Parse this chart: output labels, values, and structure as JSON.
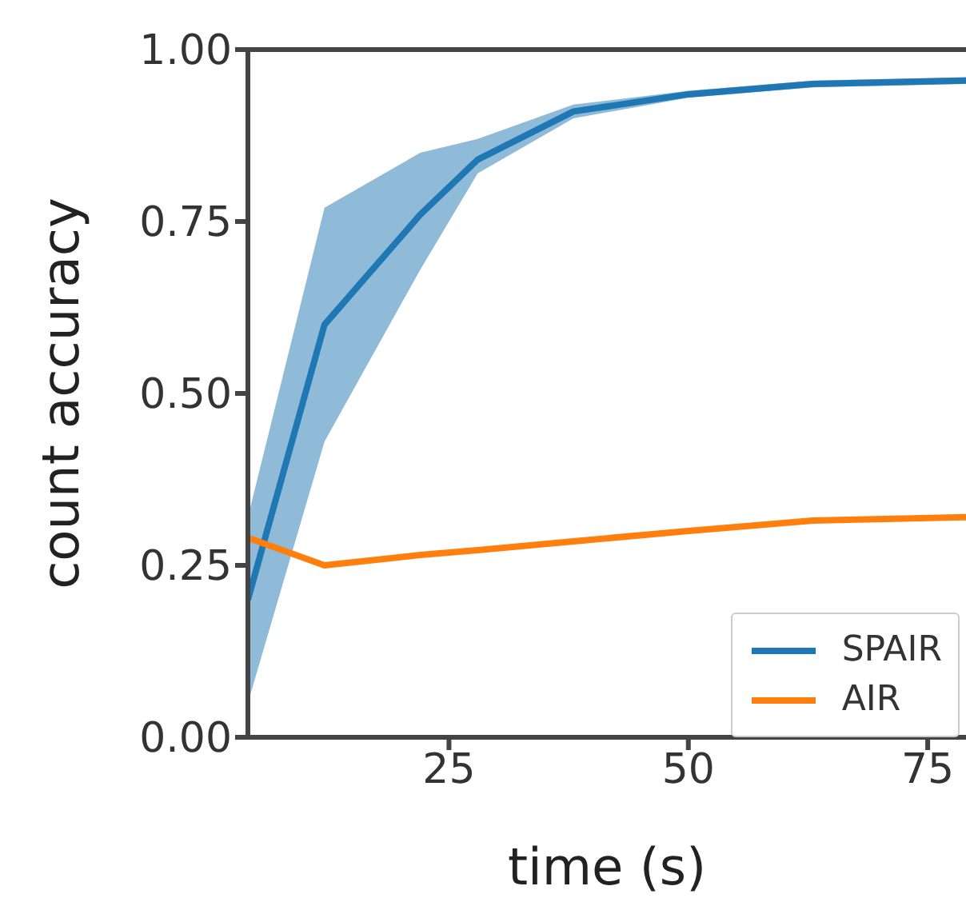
{
  "chart_data": {
    "type": "line",
    "xlabel": "time (s)",
    "ylabel": "count accuracy",
    "x": [
      4,
      12,
      22,
      28,
      38,
      50,
      63,
      79
    ],
    "series": [
      {
        "name": "SPAIR",
        "color": "#1f77b4",
        "values": [
          0.2,
          0.6,
          0.76,
          0.84,
          0.91,
          0.935,
          0.95,
          0.955
        ],
        "lower": [
          0.05,
          0.43,
          0.68,
          0.82,
          0.9,
          0.93,
          0.945,
          0.95
        ],
        "upper": [
          0.32,
          0.77,
          0.85,
          0.87,
          0.92,
          0.94,
          0.955,
          0.96
        ]
      },
      {
        "name": "AIR",
        "color": "#ff7f0e",
        "values": [
          0.29,
          0.25,
          0.265,
          0.272,
          0.285,
          0.3,
          0.315,
          0.32
        ]
      }
    ],
    "xlim": [
      4,
      79
    ],
    "xticks": [
      25,
      50,
      75
    ],
    "ylim": [
      0,
      1
    ],
    "yticks": [
      {
        "value": 0,
        "label": "0.00"
      },
      {
        "value": 0.25,
        "label": "0.25"
      },
      {
        "value": 0.5,
        "label": "0.50"
      },
      {
        "value": 0.75,
        "label": "0.75"
      },
      {
        "value": 1,
        "label": "1.00"
      }
    ],
    "grid": false,
    "legend": "bottom right",
    "marker": "none",
    "line_style": "solid"
  }
}
